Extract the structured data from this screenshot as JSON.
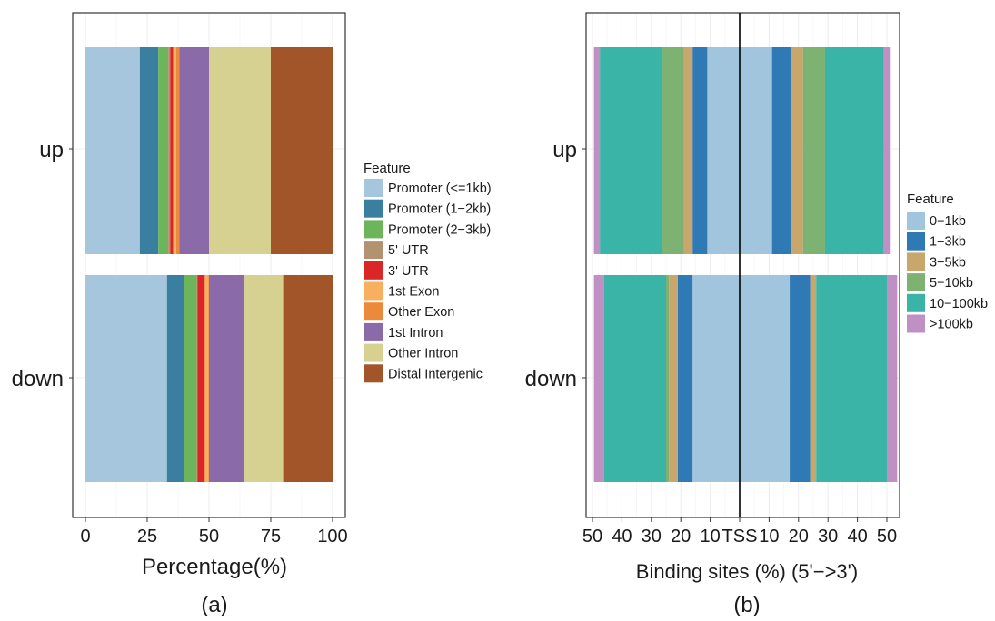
{
  "chart_data": [
    {
      "type": "bar",
      "orientation": "horizontal",
      "stacked": true,
      "panel_label": "(a)",
      "xlabel": "Percentage(%)",
      "ylabel": "",
      "xlim": [
        0,
        100
      ],
      "x_ticks": [
        "0",
        "25",
        "50",
        "75",
        "100"
      ],
      "categories": [
        "up",
        "down"
      ],
      "legend_title": "Feature",
      "legend_position": "right",
      "grid": true,
      "series": [
        {
          "name": "Promoter (<=1kb)",
          "color": "#a5c6dc",
          "values": [
            22.0,
            33.0
          ]
        },
        {
          "name": "Promoter (1−2kb)",
          "color": "#3a7f9f",
          "values": [
            7.5,
            7.0
          ]
        },
        {
          "name": "Promoter (2−3kb)",
          "color": "#6cb55a",
          "values": [
            4.0,
            5.0
          ]
        },
        {
          "name": "5' UTR",
          "color": "#b29271",
          "values": [
            0.8,
            0.3
          ]
        },
        {
          "name": "3' UTR",
          "color": "#d92728",
          "values": [
            1.2,
            3.0
          ]
        },
        {
          "name": "1st Exon",
          "color": "#f6b060",
          "values": [
            1.2,
            1.5
          ]
        },
        {
          "name": "Other Exon",
          "color": "#ec8a3c",
          "values": [
            1.3,
            0.2
          ]
        },
        {
          "name": "1st Intron",
          "color": "#8b6aa9",
          "values": [
            12.0,
            14.0
          ]
        },
        {
          "name": "Other Intron",
          "color": "#d6d191",
          "values": [
            25.0,
            16.0
          ]
        },
        {
          "name": "Distal Intergenic",
          "color": "#a3552a",
          "values": [
            25.0,
            20.0
          ]
        }
      ]
    },
    {
      "type": "bar",
      "orientation": "horizontal",
      "stacked": true,
      "diverging": true,
      "panel_label": "(b)",
      "xlabel": "Binding sites (%) (5'−>3')",
      "ylabel": "",
      "xlim": [
        -50,
        50
      ],
      "x_ticks": [
        "50",
        "40",
        "30",
        "20",
        "10",
        "TSS",
        "10",
        "20",
        "30",
        "40",
        "50"
      ],
      "categories": [
        "up",
        "down"
      ],
      "legend_title": "Feature",
      "legend_position": "right",
      "grid": true,
      "series": [
        {
          "name": "0−1kb",
          "color": "#a0c5dc",
          "upstream": [
            11.0,
            16.0
          ],
          "downstream": [
            11.0,
            17.0
          ]
        },
        {
          "name": "1−3kb",
          "color": "#2f7ab5",
          "upstream": [
            5.0,
            5.0
          ],
          "downstream": [
            6.5,
            7.0
          ]
        },
        {
          "name": "3−5kb",
          "color": "#c9a66b",
          "upstream": [
            3.0,
            3.0
          ],
          "downstream": [
            4.0,
            2.0
          ]
        },
        {
          "name": "5−10kb",
          "color": "#7db272",
          "upstream": [
            7.5,
            1.0
          ],
          "downstream": [
            7.5,
            0.0
          ]
        },
        {
          "name": "10−100kb",
          "color": "#3ab4a6",
          "upstream": [
            21.0,
            21.0
          ],
          "downstream": [
            20.0,
            24.0
          ]
        },
        {
          "name": ">100kb",
          "color": "#c08fc4",
          "upstream": [
            2.0,
            3.5
          ],
          "downstream": [
            2.0,
            3.5
          ]
        }
      ]
    }
  ]
}
